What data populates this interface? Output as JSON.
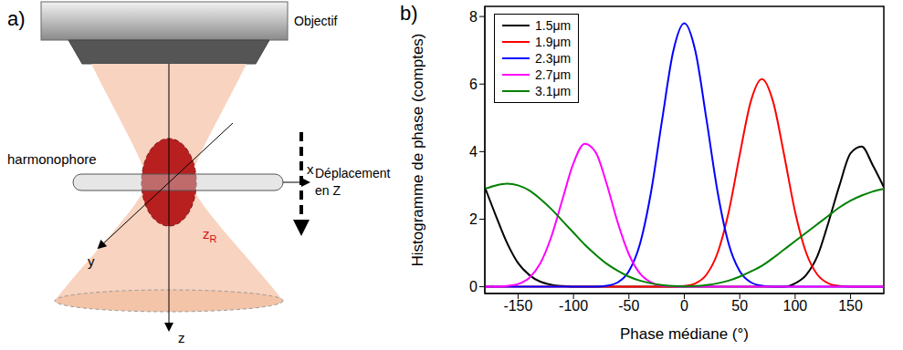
{
  "panel_a": {
    "letter": "a)",
    "objective": "Objectif",
    "sample": "harmonophore",
    "motion": [
      "Déplacement",
      "en Z"
    ],
    "axes": [
      "x",
      "y",
      "z"
    ],
    "focal_depth": {
      "text": "z",
      "subscript": "R"
    }
  },
  "panel_b": {
    "letter": "b)"
  },
  "chart_data": {
    "type": "line",
    "x_label": "Phase médiane (°)",
    "y_label": "Histogramme de phase (comptes)",
    "x": [
      -180,
      -170,
      -160,
      -150,
      -140,
      -130,
      -120,
      -110,
      -100,
      -90,
      -80,
      -70,
      -60,
      -50,
      -40,
      -30,
      -20,
      -10,
      0,
      10,
      20,
      30,
      40,
      50,
      60,
      70,
      80,
      90,
      100,
      110,
      120,
      130,
      140,
      150,
      160,
      170,
      180
    ],
    "xlim": [
      -180,
      180
    ],
    "xticks": [
      -150,
      -100,
      -50,
      0,
      50,
      100,
      150
    ],
    "ylim": [
      -0.2,
      8.3
    ],
    "yticks": [
      0,
      2,
      4,
      6,
      8
    ],
    "grid": false,
    "legend": "upper left",
    "series": [
      {
        "name": "1.5μm",
        "color": "#000000",
        "values": [
          2.95,
          2.1,
          1.3,
          0.7,
          0.35,
          0.15,
          0.06,
          0.02,
          0,
          0,
          0,
          0,
          0,
          0,
          0,
          0,
          0,
          0,
          0,
          0,
          0,
          0,
          0,
          0,
          0,
          0,
          0,
          0,
          0.1,
          0.35,
          0.9,
          1.9,
          3.0,
          3.95,
          4.15,
          3.6,
          2.95
        ]
      },
      {
        "name": "1.9μm",
        "color": "#ff0000",
        "values": [
          0,
          0,
          0,
          0,
          0,
          0,
          0,
          0,
          0,
          0,
          0,
          0,
          0,
          0,
          0,
          0,
          0,
          0,
          0.02,
          0.1,
          0.36,
          1.0,
          2.21,
          3.91,
          5.49,
          6.15,
          5.49,
          3.91,
          2.21,
          1.0,
          0.36,
          0.1,
          0.02,
          0,
          0,
          0,
          0
        ]
      },
      {
        "name": "2.3μm",
        "color": "#0000ff",
        "values": [
          0,
          0,
          0,
          0,
          0,
          0,
          0,
          0,
          0,
          0,
          0,
          0.03,
          0.13,
          0.46,
          1.27,
          2.81,
          4.95,
          6.97,
          7.8,
          6.97,
          4.95,
          2.81,
          1.27,
          0.46,
          0.13,
          0.03,
          0,
          0,
          0,
          0,
          0,
          0,
          0,
          0,
          0,
          0,
          0
        ]
      },
      {
        "name": "2.7μm",
        "color": "#ff00ff",
        "values": [
          0,
          0,
          0.02,
          0.08,
          0.26,
          0.69,
          1.48,
          2.58,
          3.66,
          4.23,
          3.98,
          3.04,
          1.89,
          0.96,
          0.39,
          0.13,
          0.03,
          0.01,
          0,
          0,
          0,
          0,
          0,
          0,
          0,
          0,
          0,
          0,
          0,
          0,
          0,
          0,
          0,
          0,
          0,
          0,
          0
        ]
      },
      {
        "name": "3.1μm",
        "color": "#008000",
        "values": [
          2.9,
          3.0,
          3.05,
          3.0,
          2.85,
          2.6,
          2.3,
          1.95,
          1.6,
          1.25,
          0.95,
          0.68,
          0.47,
          0.3,
          0.18,
          0.1,
          0.05,
          0.02,
          0.01,
          0.02,
          0.05,
          0.1,
          0.18,
          0.3,
          0.45,
          0.62,
          0.85,
          1.1,
          1.35,
          1.6,
          1.85,
          2.1,
          2.35,
          2.55,
          2.7,
          2.82,
          2.9
        ]
      }
    ]
  }
}
